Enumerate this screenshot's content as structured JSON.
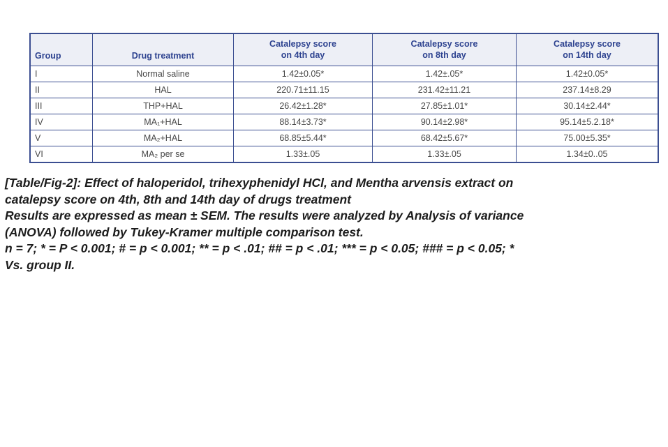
{
  "table": {
    "headers": [
      "Group",
      "Drug treatment",
      "Catalepsy score\non 4th day",
      "Catalepsy score\non  8th day",
      "Catalepsy score\non  14th day"
    ],
    "rows": [
      [
        "I",
        "Normal saline",
        "1.42±0.05*",
        "1.42±.05*",
        "1.42±0.05*"
      ],
      [
        "II",
        "HAL",
        "220.71±11.15",
        "231.42±11.21",
        "237.14±8.29"
      ],
      [
        "III",
        "THP+HAL",
        "26.42±1.28*",
        "27.85±1.01*",
        "30.14±2.44*"
      ],
      [
        "IV",
        "MA₁+HAL",
        "88.14±3.73*",
        "90.14±2.98*",
        "95.14±5.2.18*"
      ],
      [
        "V",
        "MA₂+HAL",
        "68.85±5.44*",
        "68.42±5.67*",
        "75.00±5.35*"
      ],
      [
        "VI",
        "MA₂ per se",
        "1.33±.05",
        "1.33±.05",
        "1.34±0..05"
      ]
    ]
  },
  "caption": {
    "lines": [
      "[Table/Fig-2]: Effect of haloperidol, trihexyphenidyl HCl, and Mentha arvensis extract on",
      "catalepsy score on 4th, 8th and 14th day of drugs treatment",
      "Results are expressed as mean ± SEM. The results were analyzed by Analysis of variance",
      "(ANOVA) followed by Tukey-Kramer multiple comparison test.",
      "n = 7; * = P < 0.001; # = p < 0.001; ** = p < .01; ## = p < .01; *** = p < 0.05; ### = p < 0.05; *",
      "Vs. group II."
    ]
  },
  "colors": {
    "table_border": "#3b4e91",
    "header_bg": "#edeff6",
    "header_text": "#2e4390",
    "body_text": "#474747",
    "caption_text": "#1c1c1c",
    "page_bg": "#ffffff"
  }
}
